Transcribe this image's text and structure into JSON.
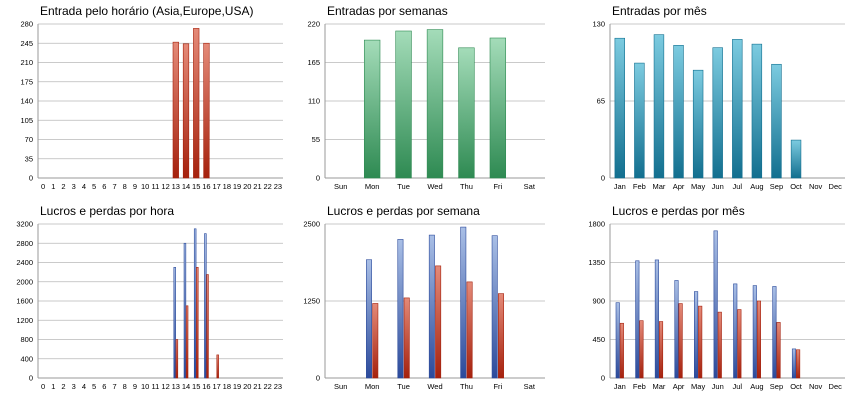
{
  "colors": {
    "red_top": "#e48a78",
    "red_bottom": "#a5210d",
    "green_top": "#a4dcb9",
    "green_bottom": "#2e8a52",
    "teal_top": "#7ccbe0",
    "teal_bottom": "#126f8f",
    "blue_top": "#a9bfe6",
    "blue_bottom": "#2b4a9b"
  },
  "chart_data": [
    {
      "type": "bar",
      "title": "Entrada pelo horário (Asia,Europe,USA)",
      "categories": [
        "0",
        "1",
        "2",
        "3",
        "4",
        "5",
        "6",
        "7",
        "8",
        "9",
        "10",
        "11",
        "12",
        "13",
        "14",
        "15",
        "16",
        "17",
        "18",
        "19",
        "20",
        "21",
        "22",
        "23"
      ],
      "series": [
        {
          "color": "red",
          "values": [
            0,
            0,
            0,
            0,
            0,
            0,
            0,
            0,
            0,
            0,
            0,
            0,
            0,
            247,
            244,
            272,
            245,
            0,
            0,
            0,
            0,
            0,
            0,
            0
          ]
        }
      ],
      "yticks": [
        0,
        35,
        70,
        105,
        140,
        175,
        210,
        245,
        280
      ],
      "ylim": [
        0,
        280
      ],
      "grid": true
    },
    {
      "type": "bar",
      "title": "Entradas por semanas",
      "categories": [
        "Sun",
        "Mon",
        "Tue",
        "Wed",
        "Thu",
        "Fri",
        "Sat"
      ],
      "series": [
        {
          "color": "green",
          "values": [
            0,
            197,
            210,
            212,
            186,
            200,
            0
          ]
        }
      ],
      "yticks": [
        0,
        55,
        110,
        165,
        220
      ],
      "ylim": [
        0,
        220
      ],
      "grid": true
    },
    {
      "type": "bar",
      "title": "Entradas por mês",
      "categories": [
        "Jan",
        "Feb",
        "Mar",
        "Apr",
        "May",
        "Jun",
        "Jul",
        "Aug",
        "Sep",
        "Oct",
        "Nov",
        "Dec"
      ],
      "series": [
        {
          "color": "teal",
          "values": [
            118,
            97,
            121,
            112,
            91,
            110,
            117,
            113,
            96,
            32,
            0,
            0
          ]
        }
      ],
      "yticks": [
        0,
        65,
        130
      ],
      "ylim": [
        0,
        130
      ],
      "grid": true
    },
    {
      "type": "bar",
      "title": "Lucros e perdas por hora",
      "categories": [
        "0",
        "1",
        "2",
        "3",
        "4",
        "5",
        "6",
        "7",
        "8",
        "9",
        "10",
        "11",
        "12",
        "13",
        "14",
        "15",
        "16",
        "17",
        "18",
        "19",
        "20",
        "21",
        "22",
        "23"
      ],
      "series": [
        {
          "color": "blue",
          "values": [
            0,
            0,
            0,
            0,
            0,
            0,
            0,
            0,
            0,
            0,
            0,
            0,
            0,
            2300,
            2800,
            3100,
            3000,
            0,
            0,
            0,
            0,
            0,
            0,
            0
          ]
        },
        {
          "color": "red",
          "values": [
            0,
            0,
            0,
            0,
            0,
            0,
            0,
            0,
            0,
            0,
            0,
            0,
            0,
            800,
            1500,
            2300,
            2150,
            480,
            0,
            0,
            0,
            0,
            0,
            0
          ]
        }
      ],
      "yticks": [
        0,
        400,
        800,
        1200,
        1600,
        2000,
        2400,
        2800,
        3200
      ],
      "ylim": [
        0,
        3200
      ],
      "grid": true
    },
    {
      "type": "bar",
      "title": "Lucros e perdas por semana",
      "categories": [
        "Sun",
        "Mon",
        "Tue",
        "Wed",
        "Thu",
        "Fri",
        "Sat"
      ],
      "series": [
        {
          "color": "blue",
          "values": [
            0,
            1920,
            2250,
            2320,
            2450,
            2310,
            0
          ]
        },
        {
          "color": "red",
          "values": [
            0,
            1210,
            1300,
            1820,
            1560,
            1370,
            0
          ]
        }
      ],
      "yticks": [
        0,
        1250,
        2500
      ],
      "ylim": [
        0,
        2500
      ],
      "grid": true
    },
    {
      "type": "bar",
      "title": "Lucros e perdas por mês",
      "categories": [
        "Jan",
        "Feb",
        "Mar",
        "Apr",
        "May",
        "Jun",
        "Jul",
        "Aug",
        "Sep",
        "Oct",
        "Nov",
        "Dec"
      ],
      "series": [
        {
          "color": "blue",
          "values": [
            880,
            1370,
            1380,
            1140,
            1010,
            1720,
            1100,
            1080,
            1070,
            340,
            0,
            0
          ]
        },
        {
          "color": "red",
          "values": [
            640,
            670,
            660,
            870,
            840,
            770,
            800,
            900,
            650,
            330,
            0,
            0
          ]
        }
      ],
      "yticks": [
        0,
        450,
        900,
        1350,
        1800
      ],
      "ylim": [
        0,
        1800
      ],
      "grid": true
    }
  ]
}
